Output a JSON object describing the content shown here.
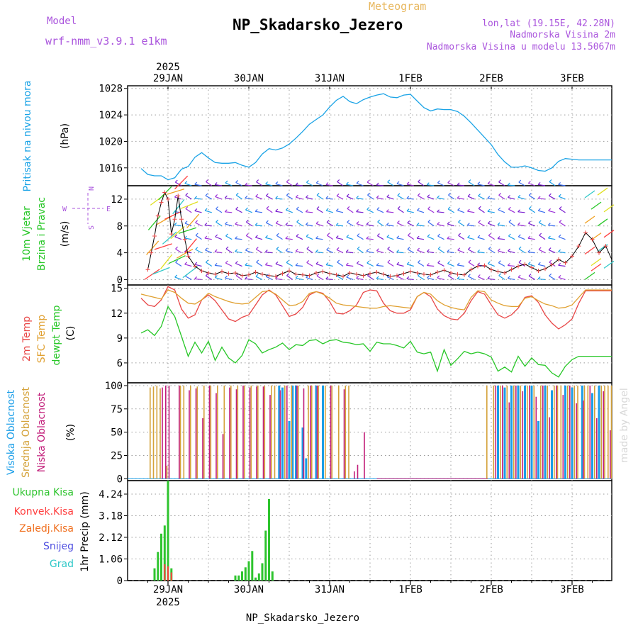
{
  "header": {
    "model_label": "Model",
    "model_name": "wrf-nmm_v3.9.1 e1km",
    "meteogram_label": "Meteogram",
    "station": "NP_Skadarsko_Jezero",
    "lonlat": "lon,lat (19.15E, 42.28N)",
    "elevation": "Nadmorska Visina 2m",
    "model_elevation": "Nadmorska Visina u modelu 13.5067m",
    "footer_station": "NP_Skadarsko_Jezero",
    "credit": "made by Angel"
  },
  "time_axis": {
    "year": "2025",
    "labels": [
      "29JAN",
      "30JAN",
      "31JAN",
      "1FEB",
      "2FEB",
      "3FEB"
    ],
    "day_starts": [
      0,
      1,
      2,
      3,
      4,
      5
    ]
  },
  "colors": {
    "pressure": "#1aa3e6",
    "temp_2m": "#e84646",
    "sfc_temp": "#e0a030",
    "dewpoint": "#27c727",
    "high_cloud": "#1a9ee8",
    "mid_cloud": "#d4a23a",
    "low_cloud": "#c21e7a",
    "total_precip": "#2ec42e",
    "conv_precip": "#ff4040",
    "freezing_precip": "#f07020",
    "snow": "#5050e0",
    "hail": "#30c8c8",
    "wind_speed_marker": "#e84646",
    "title_purple": "#aa55dd",
    "title_orange": "#e8b860"
  },
  "panels": {
    "pressure": {
      "title": "Pritisak na nivou mora",
      "unit": "(hPa)",
      "ticks": [
        "1016",
        "1020",
        "1024",
        "1028"
      ]
    },
    "wind": {
      "title1": "10m Vjetar",
      "title2": "Brzina i Pravac",
      "unit": "(m/s)",
      "ticks": [
        "0",
        "4",
        "8",
        "12"
      ],
      "compass_w": "W",
      "compass_e": "E",
      "compass_n": "N",
      "compass_s": "S"
    },
    "temp": {
      "title1": "2m Temp",
      "title2": "SFC Temp",
      "title3": "dewpt Temp",
      "unit": "(C)",
      "ticks": [
        "6",
        "9",
        "12",
        "15"
      ]
    },
    "cloud": {
      "title1": "Visoka Oblacnost",
      "title2": "Srednja Oblacnost",
      "title3": "Niska Oblacnost",
      "unit": "(%)",
      "ticks": [
        "0",
        "25",
        "50",
        "75",
        "100"
      ]
    },
    "precip": {
      "ylabel": "1hr Precip (mm)",
      "legend": [
        "Ukupna Kisa",
        "Konvek.Kisa",
        "Zaledj.Kisa",
        "Snijeg",
        "Grad"
      ],
      "ticks": [
        "0",
        "1.06",
        "2.12",
        "3.18",
        "4.24"
      ]
    }
  },
  "chart_data": {
    "type": "line",
    "x_unit": "hours from 00 UTC 29 Jan 2025",
    "x_range": [
      -8,
      134
    ],
    "pressure": {
      "name": "Pritisak na nivou mora",
      "ylim": [
        1013.3,
        1028.4
      ],
      "x": [
        -8,
        -6,
        -4,
        -2,
        0,
        2,
        4,
        6,
        8,
        10,
        12,
        14,
        16,
        18,
        20,
        22,
        24,
        26,
        28,
        30,
        32,
        34,
        36,
        38,
        40,
        42,
        44,
        46,
        48,
        50,
        52,
        54,
        56,
        58,
        60,
        62,
        64,
        66,
        68,
        70,
        72,
        74,
        76,
        78,
        80,
        82,
        84,
        86,
        88,
        90,
        92,
        94,
        96,
        98,
        100,
        102,
        104,
        106,
        108,
        110,
        112,
        114,
        116,
        118,
        120,
        122,
        124,
        126,
        128,
        130,
        132,
        134
      ],
      "y": [
        1015.9,
        1015.0,
        1014.8,
        1014.8,
        1014.2,
        1014.5,
        1015.8,
        1016.2,
        1017.6,
        1018.3,
        1017.5,
        1016.8,
        1016.7,
        1016.7,
        1016.8,
        1016.4,
        1016.1,
        1016.8,
        1018.1,
        1018.9,
        1018.7,
        1019.0,
        1019.6,
        1020.5,
        1021.5,
        1022.6,
        1023.3,
        1024.0,
        1025.2,
        1026.2,
        1026.8,
        1026.0,
        1025.7,
        1026.3,
        1026.7,
        1027.0,
        1027.2,
        1026.7,
        1026.6,
        1027.0,
        1027.1,
        1026.1,
        1025.1,
        1024.6,
        1024.9,
        1024.8,
        1024.8,
        1024.5,
        1023.8,
        1022.8,
        1021.7,
        1020.6,
        1019.5,
        1018.0,
        1016.9,
        1016.1,
        1016.1,
        1016.3,
        1016.0,
        1015.6,
        1015.5,
        1016.0,
        1017.0,
        1017.4,
        1017.3,
        1017.2,
        1017.2,
        1017.2,
        1017.2,
        1017.2,
        1017.2,
        1017.2
      ]
    },
    "wind_speed": {
      "name": "10m wind speed",
      "ylim": [
        -0.8,
        14.0
      ],
      "x": [
        -6,
        -5,
        -4,
        -3,
        -2,
        -1,
        0,
        1,
        2,
        3,
        4,
        5,
        6,
        8,
        10,
        12,
        14,
        16,
        18,
        20,
        22,
        24,
        26,
        28,
        30,
        32,
        34,
        36,
        38,
        40,
        42,
        44,
        46,
        48,
        50,
        52,
        54,
        56,
        58,
        60,
        62,
        64,
        66,
        68,
        70,
        72,
        74,
        76,
        78,
        80,
        82,
        84,
        86,
        88,
        90,
        92,
        94,
        96,
        98,
        100,
        102,
        104,
        106,
        108,
        110,
        112,
        114,
        116,
        118,
        120,
        122,
        124,
        126,
        128,
        130,
        132
      ],
      "y": [
        1.5,
        4.0,
        6.5,
        9.5,
        11.5,
        13.0,
        12.0,
        6.8,
        9.0,
        12.5,
        9.0,
        6.0,
        3.5,
        2.0,
        1.3,
        1.0,
        0.8,
        1.2,
        0.9,
        1.0,
        0.6,
        0.7,
        1.1,
        0.8,
        0.6,
        0.5,
        0.9,
        1.3,
        0.8,
        0.7,
        0.6,
        1.0,
        1.2,
        0.9,
        0.7,
        0.5,
        1.0,
        0.8,
        0.6,
        0.9,
        1.1,
        0.8,
        0.5,
        0.6,
        0.9,
        1.2,
        1.0,
        0.8,
        0.7,
        1.1,
        1.4,
        1.0,
        0.8,
        0.7,
        1.5,
        2.0,
        2.1,
        1.5,
        1.2,
        1.0,
        1.5,
        2.0,
        2.3,
        1.8,
        1.3,
        1.6,
        2.2,
        3.0,
        2.5,
        3.5,
        5.0,
        7.0,
        6.0,
        4.0,
        5.0,
        3.0
      ]
    },
    "temperature": {
      "ylim": [
        3.6,
        15.4
      ],
      "x": [
        -8,
        -6,
        -4,
        -2,
        0,
        2,
        4,
        6,
        8,
        10,
        12,
        14,
        16,
        18,
        20,
        22,
        24,
        26,
        28,
        30,
        32,
        34,
        36,
        38,
        40,
        42,
        44,
        46,
        48,
        50,
        52,
        54,
        56,
        58,
        60,
        62,
        64,
        66,
        68,
        70,
        72,
        74,
        76,
        78,
        80,
        82,
        84,
        86,
        88,
        90,
        92,
        94,
        96,
        98,
        100,
        102,
        104,
        106,
        108,
        110,
        112,
        114,
        116,
        118,
        120,
        122,
        124,
        126,
        128,
        130,
        132,
        134
      ],
      "series": [
        {
          "name": "2m Temp",
          "y": [
            13.8,
            13.0,
            12.8,
            13.6,
            15.2,
            14.8,
            12.5,
            11.4,
            11.8,
            13.6,
            14.2,
            13.5,
            12.4,
            11.3,
            11.0,
            11.5,
            11.8,
            13.0,
            14.2,
            14.8,
            14.2,
            12.9,
            11.6,
            11.9,
            12.7,
            14.2,
            14.6,
            14.4,
            13.4,
            12.0,
            11.9,
            12.3,
            13.0,
            14.5,
            14.8,
            14.7,
            13.2,
            12.3,
            12.0,
            12.0,
            12.4,
            14.0,
            14.5,
            14.0,
            12.5,
            11.7,
            11.3,
            11.2,
            12.0,
            13.5,
            14.6,
            14.3,
            13.0,
            11.8,
            11.4,
            11.8,
            12.6,
            13.9,
            14.1,
            13.3,
            11.8,
            10.8,
            10.1,
            10.6,
            11.3,
            13.2,
            14.7,
            14.7,
            14.7,
            14.7,
            14.7,
            14.7
          ]
        },
        {
          "name": "SFC Temp",
          "y": [
            14.3,
            14.1,
            13.9,
            13.7,
            14.8,
            14.5,
            13.8,
            13.2,
            13.1,
            13.6,
            14.4,
            14.0,
            13.7,
            13.4,
            13.2,
            13.1,
            13.2,
            13.9,
            14.6,
            14.7,
            14.3,
            13.6,
            12.9,
            13.0,
            13.4,
            14.4,
            14.6,
            14.3,
            13.8,
            13.2,
            13.0,
            12.9,
            12.8,
            12.7,
            12.6,
            12.6,
            12.8,
            12.9,
            12.8,
            12.7,
            12.6,
            14.0,
            14.5,
            14.3,
            13.5,
            13.0,
            12.7,
            12.5,
            12.4,
            13.9,
            14.7,
            14.6,
            13.6,
            13.2,
            12.9,
            12.8,
            12.8,
            13.8,
            14.0,
            13.5,
            13.1,
            12.9,
            12.6,
            12.7,
            13.0,
            13.9,
            14.8,
            14.8,
            14.8,
            14.8,
            14.8,
            14.8
          ]
        },
        {
          "name": "dewpt Temp",
          "y": [
            9.6,
            10.0,
            9.3,
            10.4,
            12.8,
            11.6,
            9.2,
            6.8,
            8.5,
            7.2,
            8.6,
            6.3,
            7.9,
            6.6,
            6.0,
            6.9,
            8.8,
            8.3,
            7.2,
            7.6,
            7.9,
            8.4,
            7.6,
            8.2,
            8.1,
            8.7,
            8.8,
            8.3,
            8.7,
            8.8,
            8.5,
            8.4,
            8.2,
            8.3,
            7.4,
            8.5,
            8.3,
            8.3,
            8.1,
            7.8,
            8.6,
            7.3,
            7.1,
            7.3,
            5.0,
            7.6,
            5.7,
            6.5,
            7.4,
            7.1,
            7.3,
            7.1,
            6.7,
            5.0,
            5.5,
            4.9,
            6.8,
            5.6,
            6.6,
            5.8,
            5.7,
            4.8,
            4.3,
            5.6,
            6.4,
            6.8,
            6.8,
            6.8,
            6.8,
            6.8,
            6.8,
            6.8
          ]
        }
      ]
    },
    "cloud_cover": {
      "ylim": [
        -2,
        103
      ],
      "series": [
        {
          "name": "Visoka Oblacnost",
          "x": [
            33,
            34,
            36,
            37,
            38,
            40,
            41,
            44,
            46,
            98,
            100,
            102,
            104,
            106,
            108,
            110,
            112,
            114,
            118,
            120,
            123,
            126,
            128
          ],
          "y": [
            100,
            98,
            62,
            100,
            100,
            55,
            22,
            100,
            100,
            100,
            98,
            100,
            100,
            100,
            100,
            62,
            100,
            95,
            100,
            98,
            100,
            92,
            100
          ]
        },
        {
          "name": "Srednja Oblacnost",
          "x": [
            -5,
            -4,
            -3,
            -2,
            0,
            4,
            5,
            7,
            9,
            11,
            13,
            15,
            17,
            19,
            21,
            23,
            25,
            27,
            29,
            31,
            32,
            35,
            37,
            39,
            42,
            43,
            45,
            47,
            49,
            51,
            53,
            54,
            95,
            97,
            99,
            101,
            103,
            105,
            107,
            109,
            111,
            113,
            115,
            116,
            117,
            119,
            121,
            122,
            124,
            125,
            127,
            129,
            130,
            131,
            132,
            133
          ],
          "y": [
            98,
            99,
            100,
            97,
            14,
            100,
            100,
            100,
            99,
            100,
            100,
            100,
            100,
            100,
            100,
            100,
            100,
            100,
            100,
            100,
            100,
            100,
            100,
            100,
            100,
            100,
            100,
            100,
            100,
            100,
            100,
            100,
            100,
            100,
            100,
            100,
            100,
            100,
            100,
            100,
            100,
            100,
            100,
            100,
            100,
            100,
            100,
            100,
            100,
            100,
            100,
            100,
            100,
            100,
            100,
            100
          ]
        },
        {
          "name": "Niska Oblacnost",
          "x": [
            -2,
            -1,
            0,
            3,
            6,
            8,
            10,
            12,
            14,
            16,
            18,
            20,
            22,
            24,
            26,
            28,
            30,
            33,
            35,
            38,
            40,
            42,
            44,
            48,
            52,
            55,
            56,
            58,
            97,
            99,
            101,
            103,
            105,
            107,
            109,
            111,
            113,
            115,
            117,
            119,
            121,
            123,
            125,
            127,
            129,
            131
          ],
          "y": [
            98,
            100,
            100,
            100,
            95,
            97,
            65,
            100,
            92,
            48,
            98,
            96,
            100,
            98,
            99,
            99,
            90,
            95,
            100,
            100,
            97,
            100,
            100,
            100,
            96,
            8,
            15,
            50,
            100,
            100,
            82,
            100,
            94,
            100,
            88,
            100,
            66,
            100,
            90,
            100,
            81,
            84,
            100,
            65,
            94,
            52
          ]
        }
      ]
    },
    "precipitation": {
      "ylim": [
        0,
        4.9
      ],
      "series": [
        {
          "name": "Ukupna Kisa",
          "x": [
            -4,
            -3,
            -2,
            -1,
            0,
            1,
            20,
            21,
            22,
            23,
            24,
            25,
            26,
            27,
            28,
            29,
            30,
            31
          ],
          "y": [
            0.6,
            1.4,
            2.3,
            2.7,
            4.9,
            0.6,
            0.25,
            0.25,
            0.45,
            0.65,
            0.95,
            1.45,
            0.15,
            0.35,
            0.85,
            2.45,
            4.0,
            0.45
          ]
        },
        {
          "name": "Konvek.Kisa",
          "x": [
            -1,
            0,
            1
          ],
          "y": [
            0.8,
            0.7,
            0.4
          ]
        },
        {
          "name": "Zaledj.Kisa",
          "x": [],
          "y": []
        },
        {
          "name": "Snijeg",
          "x": [],
          "y": []
        },
        {
          "name": "Grad",
          "x": [],
          "y": []
        }
      ]
    }
  }
}
